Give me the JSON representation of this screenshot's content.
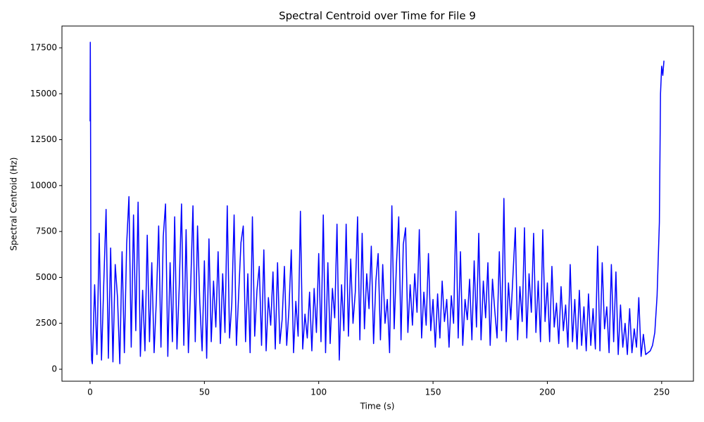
{
  "chart_data": {
    "type": "line",
    "title": "Spectral Centroid over Time for File 9",
    "xlabel": "Time (s)",
    "ylabel": "Spectral Centroid (Hz)",
    "xlim": [
      -12.3,
      263.9
    ],
    "ylim": [
      -651,
      18687
    ],
    "xticks": [
      0,
      50,
      100,
      150,
      200,
      250
    ],
    "yticks": [
      0,
      2500,
      5000,
      7500,
      10000,
      12500,
      15000,
      17500
    ],
    "grid": false,
    "x": [
      0,
      0.1,
      0.2,
      0.4,
      0.7,
      1,
      2,
      3,
      4,
      5,
      6,
      7,
      8,
      9,
      10,
      11,
      12,
      13,
      14,
      15,
      16,
      17,
      18,
      19,
      20,
      21,
      22,
      23,
      24,
      25,
      26,
      27,
      28,
      29,
      30,
      31,
      32,
      33,
      34,
      35,
      36,
      37,
      38,
      39,
      40,
      41,
      42,
      43,
      44,
      45,
      46,
      47,
      48,
      49,
      50,
      51,
      52,
      53,
      54,
      55,
      56,
      57,
      58,
      59,
      60,
      61,
      62,
      63,
      64,
      65,
      66,
      67,
      68,
      69,
      70,
      71,
      72,
      73,
      74,
      75,
      76,
      77,
      78,
      79,
      80,
      81,
      82,
      83,
      84,
      85,
      86,
      87,
      88,
      89,
      90,
      91,
      92,
      93,
      94,
      95,
      96,
      97,
      98,
      99,
      100,
      101,
      102,
      103,
      104,
      105,
      106,
      107,
      108,
      109,
      110,
      111,
      112,
      113,
      114,
      115,
      116,
      117,
      118,
      119,
      120,
      121,
      122,
      123,
      124,
      125,
      126,
      127,
      128,
      129,
      130,
      131,
      132,
      133,
      134,
      135,
      136,
      137,
      138,
      139,
      140,
      141,
      142,
      143,
      144,
      145,
      146,
      147,
      148,
      149,
      150,
      151,
      152,
      153,
      154,
      155,
      156,
      157,
      158,
      159,
      160,
      161,
      162,
      163,
      164,
      165,
      166,
      167,
      168,
      169,
      170,
      171,
      172,
      173,
      174,
      175,
      176,
      177,
      178,
      179,
      180,
      181,
      182,
      183,
      184,
      185,
      186,
      187,
      188,
      189,
      190,
      191,
      192,
      193,
      194,
      195,
      196,
      197,
      198,
      199,
      200,
      201,
      202,
      203,
      204,
      205,
      206,
      207,
      208,
      209,
      210,
      211,
      212,
      213,
      214,
      215,
      216,
      217,
      218,
      219,
      220,
      221,
      222,
      223,
      224,
      225,
      226,
      227,
      228,
      229,
      230,
      231,
      232,
      233,
      234,
      235,
      236,
      237,
      238,
      239,
      240,
      241,
      242,
      243,
      244,
      245,
      246,
      247,
      248,
      249,
      249.5,
      250,
      250.5,
      251
    ],
    "series": [
      {
        "color": "#0000ff",
        "values": [
          13500,
          17800,
          14000,
          2000,
          500,
          300,
          4600,
          800,
          7400,
          500,
          4700,
          8700,
          600,
          6600,
          400,
          5700,
          3900,
          300,
          6400,
          900,
          6800,
          9400,
          1200,
          8400,
          2100,
          9100,
          700,
          4300,
          1000,
          7300,
          1500,
          5800,
          900,
          3800,
          7800,
          1200,
          7200,
          9000,
          700,
          5800,
          1500,
          8300,
          1100,
          4500,
          9000,
          1300,
          7600,
          900,
          4500,
          8900,
          1500,
          7800,
          3600,
          1000,
          5900,
          600,
          7100,
          1500,
          4800,
          2300,
          6400,
          1400,
          5200,
          2000,
          8900,
          1700,
          3600,
          8400,
          1300,
          4100,
          6900,
          7800,
          1500,
          5200,
          900,
          8300,
          1800,
          4300,
          5600,
          1300,
          6500,
          1000,
          3900,
          2400,
          5300,
          1100,
          5800,
          1400,
          2700,
          5600,
          1300,
          3300,
          6500,
          900,
          3700,
          1800,
          8600,
          1100,
          3000,
          1700,
          4200,
          1000,
          4400,
          2000,
          6300,
          1500,
          8400,
          900,
          5800,
          1400,
          4400,
          2800,
          7900,
          500,
          4600,
          2100,
          7900,
          1800,
          6000,
          2500,
          4200,
          8300,
          1600,
          7400,
          2200,
          5200,
          3300,
          6700,
          1400,
          4800,
          6300,
          1600,
          5700,
          2500,
          3800,
          900,
          8900,
          2200,
          5700,
          8300,
          1600,
          6800,
          7700,
          2000,
          4600,
          2400,
          5200,
          3100,
          7600,
          1700,
          4200,
          2400,
          6300,
          2100,
          3800,
          1200,
          4100,
          1700,
          4800,
          2600,
          3800,
          1200,
          4000,
          2500,
          8600,
          1700,
          6400,
          1300,
          3800,
          2700,
          4900,
          1600,
          5900,
          2300,
          7400,
          1600,
          4800,
          2800,
          5800,
          1300,
          4900,
          3200,
          1700,
          6400,
          2100,
          9300,
          1500,
          4700,
          2700,
          5200,
          7700,
          1600,
          4500,
          2600,
          7700,
          1700,
          5200,
          3100,
          7400,
          2000,
          4800,
          1500,
          7600,
          2600,
          4700,
          1500,
          5600,
          2300,
          3600,
          1400,
          4500,
          2100,
          3500,
          1200,
          5700,
          1500,
          3800,
          1100,
          4300,
          1300,
          3400,
          1000,
          4100,
          1300,
          3300,
          1100,
          6700,
          1000,
          5800,
          2200,
          3400,
          900,
          5700,
          1500,
          5300,
          800,
          3500,
          1200,
          2500,
          800,
          3300,
          900,
          2200,
          1200,
          3900,
          700,
          1900,
          800,
          900,
          1000,
          1300,
          2000,
          4000,
          8000,
          15000,
          16500,
          16000,
          16800
        ]
      }
    ]
  }
}
